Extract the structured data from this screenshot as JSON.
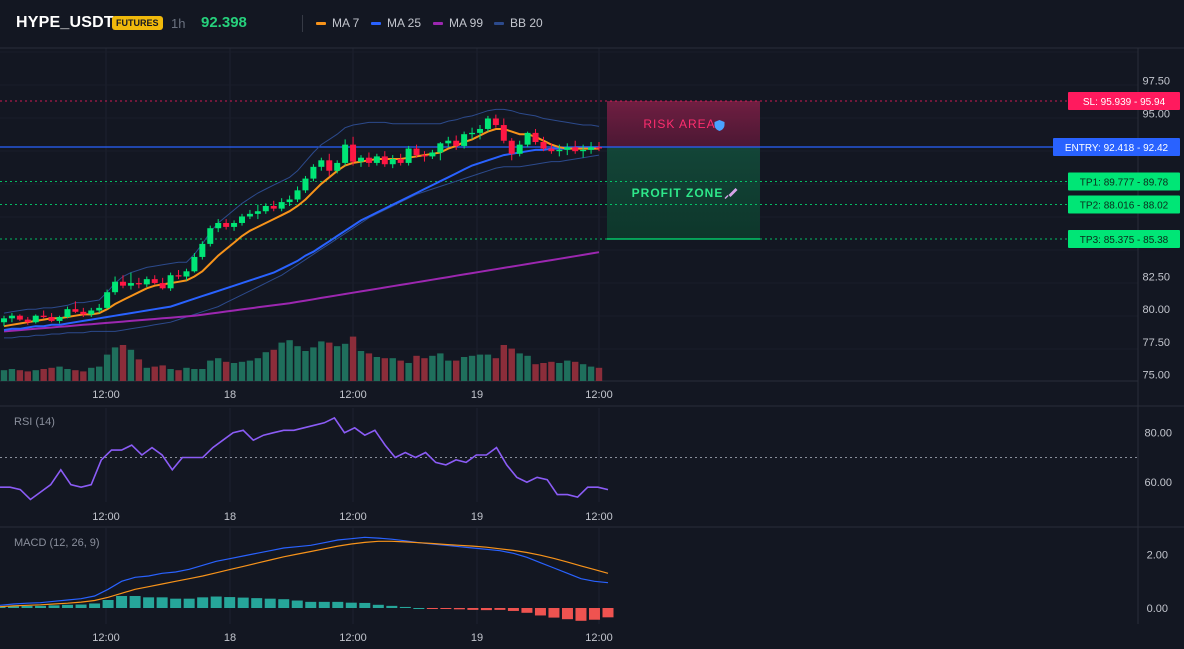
{
  "header": {
    "symbol": "HYPE_USDT",
    "badge": "FUTURES",
    "timeframe": "1h",
    "price": "92.398",
    "legend": [
      {
        "label": "MA 7",
        "color": "#f7931a"
      },
      {
        "label": "MA 25",
        "color": "#2962ff"
      },
      {
        "label": "MA 99",
        "color": "#9c27b0"
      },
      {
        "label": "BB 20",
        "color": "#2c4a8c"
      }
    ]
  },
  "colors": {
    "background": "#131722",
    "up": "#00e676",
    "down": "#ff1744",
    "vol_up": "#1f6f5c",
    "vol_down": "#8b2d3a",
    "sl": "#ff1a5e",
    "entry": "#2962ff",
    "tp": "#00e676",
    "rsi": "#8b5cf6",
    "macd": "#2962ff",
    "signal": "#f7931a",
    "hist_pos": "#26a69a",
    "hist_neg": "#ef5350"
  },
  "annotations": {
    "risk_label": "RISK AREA",
    "profit_label": "PROFIT ZONE",
    "risk_icon": "shield-icon",
    "profit_icon": "rocket-icon"
  },
  "chart_data": [
    {
      "type": "candlestick",
      "title": "",
      "ylim": [
        74.5,
        100
      ],
      "y_ticks": [
        "97.50",
        "95.00",
        "82.50",
        "80.00",
        "77.50",
        "75.00"
      ],
      "x_ticks": [
        "12:00",
        "18",
        "12:00",
        "19",
        "12:00"
      ],
      "candles": [
        {
          "o": 79.0,
          "h": 79.5,
          "l": 78.7,
          "c": 79.3
        },
        {
          "o": 79.3,
          "h": 79.7,
          "l": 79.0,
          "c": 79.5
        },
        {
          "o": 79.5,
          "h": 79.6,
          "l": 79.1,
          "c": 79.2
        },
        {
          "o": 79.2,
          "h": 79.4,
          "l": 78.8,
          "c": 79.0
        },
        {
          "o": 79.0,
          "h": 79.6,
          "l": 78.9,
          "c": 79.5
        },
        {
          "o": 79.5,
          "h": 79.9,
          "l": 79.3,
          "c": 79.4
        },
        {
          "o": 79.4,
          "h": 79.7,
          "l": 79.0,
          "c": 79.1
        },
        {
          "o": 79.1,
          "h": 79.5,
          "l": 78.9,
          "c": 79.4
        },
        {
          "o": 79.4,
          "h": 80.2,
          "l": 79.3,
          "c": 80.0
        },
        {
          "o": 80.0,
          "h": 80.6,
          "l": 79.7,
          "c": 79.8
        },
        {
          "o": 79.8,
          "h": 80.1,
          "l": 79.4,
          "c": 79.6
        },
        {
          "o": 79.6,
          "h": 80.1,
          "l": 79.4,
          "c": 79.9
        },
        {
          "o": 79.9,
          "h": 80.4,
          "l": 79.7,
          "c": 80.1
        },
        {
          "o": 80.1,
          "h": 81.5,
          "l": 80.0,
          "c": 81.3
        },
        {
          "o": 81.3,
          "h": 82.5,
          "l": 81.1,
          "c": 82.1
        },
        {
          "o": 82.1,
          "h": 82.6,
          "l": 81.6,
          "c": 81.8
        },
        {
          "o": 81.8,
          "h": 82.8,
          "l": 81.5,
          "c": 82.0
        },
        {
          "o": 82.0,
          "h": 82.4,
          "l": 81.6,
          "c": 81.9
        },
        {
          "o": 81.9,
          "h": 82.5,
          "l": 81.7,
          "c": 82.3
        },
        {
          "o": 82.3,
          "h": 82.6,
          "l": 81.9,
          "c": 82.0
        },
        {
          "o": 82.0,
          "h": 82.4,
          "l": 81.5,
          "c": 81.6
        },
        {
          "o": 81.6,
          "h": 82.8,
          "l": 81.4,
          "c": 82.6
        },
        {
          "o": 82.6,
          "h": 83.0,
          "l": 82.3,
          "c": 82.5
        },
        {
          "o": 82.5,
          "h": 83.1,
          "l": 82.2,
          "c": 82.9
        },
        {
          "o": 82.9,
          "h": 84.3,
          "l": 82.8,
          "c": 84.0
        },
        {
          "o": 84.0,
          "h": 85.2,
          "l": 83.8,
          "c": 85.0
        },
        {
          "o": 85.0,
          "h": 86.4,
          "l": 84.8,
          "c": 86.2
        },
        {
          "o": 86.2,
          "h": 86.9,
          "l": 85.9,
          "c": 86.6
        },
        {
          "o": 86.6,
          "h": 86.9,
          "l": 86.1,
          "c": 86.3
        },
        {
          "o": 86.3,
          "h": 86.8,
          "l": 86.0,
          "c": 86.6
        },
        {
          "o": 86.6,
          "h": 87.3,
          "l": 86.4,
          "c": 87.1
        },
        {
          "o": 87.1,
          "h": 87.6,
          "l": 86.9,
          "c": 87.3
        },
        {
          "o": 87.3,
          "h": 88.0,
          "l": 86.9,
          "c": 87.5
        },
        {
          "o": 87.5,
          "h": 88.1,
          "l": 87.3,
          "c": 87.9
        },
        {
          "o": 87.9,
          "h": 88.3,
          "l": 87.5,
          "c": 87.7
        },
        {
          "o": 87.7,
          "h": 88.5,
          "l": 87.5,
          "c": 88.2
        },
        {
          "o": 88.2,
          "h": 88.7,
          "l": 87.9,
          "c": 88.4
        },
        {
          "o": 88.4,
          "h": 89.4,
          "l": 88.2,
          "c": 89.1
        },
        {
          "o": 89.1,
          "h": 90.2,
          "l": 88.9,
          "c": 90.0
        },
        {
          "o": 90.0,
          "h": 91.1,
          "l": 89.8,
          "c": 90.9
        },
        {
          "o": 90.9,
          "h": 91.6,
          "l": 90.6,
          "c": 91.4
        },
        {
          "o": 91.4,
          "h": 91.9,
          "l": 90.2,
          "c": 90.6
        },
        {
          "o": 90.6,
          "h": 91.4,
          "l": 90.4,
          "c": 91.2
        },
        {
          "o": 91.2,
          "h": 93.0,
          "l": 91.0,
          "c": 92.6
        },
        {
          "o": 92.6,
          "h": 93.2,
          "l": 91.0,
          "c": 91.3
        },
        {
          "o": 91.3,
          "h": 91.8,
          "l": 90.9,
          "c": 91.6
        },
        {
          "o": 91.6,
          "h": 92.0,
          "l": 90.9,
          "c": 91.2
        },
        {
          "o": 91.2,
          "h": 91.9,
          "l": 91.0,
          "c": 91.7
        },
        {
          "o": 91.7,
          "h": 92.1,
          "l": 90.9,
          "c": 91.1
        },
        {
          "o": 91.1,
          "h": 91.8,
          "l": 90.8,
          "c": 91.5
        },
        {
          "o": 91.5,
          "h": 91.9,
          "l": 91.0,
          "c": 91.2
        },
        {
          "o": 91.2,
          "h": 92.5,
          "l": 91.0,
          "c": 92.3
        },
        {
          "o": 92.3,
          "h": 92.6,
          "l": 91.6,
          "c": 91.8
        },
        {
          "o": 91.8,
          "h": 92.1,
          "l": 91.3,
          "c": 91.7
        },
        {
          "o": 91.7,
          "h": 92.2,
          "l": 91.5,
          "c": 92.0
        },
        {
          "o": 92.0,
          "h": 92.8,
          "l": 91.4,
          "c": 92.7
        },
        {
          "o": 92.7,
          "h": 93.2,
          "l": 92.4,
          "c": 92.9
        },
        {
          "o": 92.9,
          "h": 93.3,
          "l": 92.2,
          "c": 92.5
        },
        {
          "o": 92.5,
          "h": 93.6,
          "l": 92.3,
          "c": 93.4
        },
        {
          "o": 93.4,
          "h": 93.9,
          "l": 93.0,
          "c": 93.5
        },
        {
          "o": 93.5,
          "h": 94.1,
          "l": 93.0,
          "c": 93.8
        },
        {
          "o": 93.8,
          "h": 94.8,
          "l": 93.6,
          "c": 94.6
        },
        {
          "o": 94.6,
          "h": 94.9,
          "l": 93.9,
          "c": 94.1
        },
        {
          "o": 94.1,
          "h": 94.6,
          "l": 92.7,
          "c": 92.9
        },
        {
          "o": 92.9,
          "h": 93.1,
          "l": 91.4,
          "c": 91.9
        },
        {
          "o": 91.9,
          "h": 92.9,
          "l": 91.7,
          "c": 92.6
        },
        {
          "o": 92.6,
          "h": 93.6,
          "l": 92.4,
          "c": 93.5
        },
        {
          "o": 93.5,
          "h": 93.8,
          "l": 92.6,
          "c": 92.8
        },
        {
          "o": 92.8,
          "h": 93.2,
          "l": 92.1,
          "c": 92.3
        },
        {
          "o": 92.3,
          "h": 92.7,
          "l": 91.9,
          "c": 92.1
        },
        {
          "o": 92.1,
          "h": 92.6,
          "l": 91.7,
          "c": 92.2
        },
        {
          "o": 92.2,
          "h": 92.7,
          "l": 91.8,
          "c": 92.4
        },
        {
          "o": 92.4,
          "h": 92.9,
          "l": 91.9,
          "c": 92.1
        },
        {
          "o": 92.1,
          "h": 92.6,
          "l": 91.6,
          "c": 92.2
        },
        {
          "o": 92.2,
          "h": 92.8,
          "l": 91.9,
          "c": 92.4
        },
        {
          "o": 92.4,
          "h": 92.8,
          "l": 92.1,
          "c": 92.398
        }
      ],
      "volume": [
        9,
        10,
        9,
        8,
        9,
        10,
        11,
        12,
        10,
        9,
        8,
        11,
        12,
        22,
        28,
        30,
        26,
        18,
        11,
        12,
        13,
        10,
        9,
        11,
        10,
        10,
        17,
        19,
        16,
        15,
        16,
        17,
        19,
        24,
        26,
        32,
        34,
        29,
        25,
        28,
        33,
        32,
        29,
        31,
        37,
        25,
        23,
        20,
        19,
        19,
        17,
        15,
        21,
        19,
        21,
        23,
        17,
        17,
        20,
        21,
        22,
        22,
        19,
        30,
        27,
        23,
        21,
        14,
        15,
        16,
        15,
        17,
        16,
        14,
        12,
        11
      ],
      "ma7": [
        78.7,
        78.8,
        78.9,
        79.0,
        79.1,
        79.2,
        79.3,
        79.3,
        79.4,
        79.5,
        79.6,
        79.6,
        79.7,
        80.0,
        80.4,
        80.7,
        81.0,
        81.3,
        81.6,
        81.8,
        81.9,
        82.0,
        82.1,
        82.2,
        82.5,
        82.9,
        83.5,
        84.1,
        84.6,
        85.1,
        85.6,
        86.0,
        86.3,
        86.6,
        86.9,
        87.2,
        87.5,
        87.9,
        88.4,
        89.0,
        89.6,
        90.1,
        90.6,
        91.0,
        91.2,
        91.3,
        91.4,
        91.5,
        91.5,
        91.5,
        91.5,
        91.6,
        91.7,
        91.8,
        91.9,
        92.0,
        92.3,
        92.5,
        92.8,
        93.0,
        93.3,
        93.6,
        93.8,
        93.8,
        93.6,
        93.4,
        93.4,
        93.2,
        92.9,
        92.6,
        92.4,
        92.3,
        92.3,
        92.3,
        92.3,
        92.3
      ],
      "ma25": [
        78.4,
        78.5,
        78.5,
        78.6,
        78.7,
        78.7,
        78.8,
        78.8,
        78.9,
        79.0,
        79.1,
        79.2,
        79.3,
        79.4,
        79.5,
        79.6,
        79.7,
        79.8,
        79.9,
        80.0,
        80.1,
        80.2,
        80.4,
        80.6,
        80.8,
        81.0,
        81.2,
        81.4,
        81.6,
        81.8,
        82.0,
        82.2,
        82.4,
        82.6,
        82.8,
        83.1,
        83.4,
        83.7,
        84.1,
        84.4,
        84.8,
        85.2,
        85.6,
        86.0,
        86.4,
        86.8,
        87.1,
        87.4,
        87.7,
        88.0,
        88.3,
        88.6,
        88.9,
        89.2,
        89.5,
        89.8,
        90.1,
        90.4,
        90.7,
        91.0,
        91.2,
        91.4,
        91.6,
        91.8,
        91.9,
        92.0,
        92.1,
        92.2,
        92.2,
        92.3,
        92.3,
        92.3,
        92.4,
        92.4,
        92.4,
        92.4
      ],
      "ma99": [
        78.3,
        78.35,
        78.4,
        78.45,
        78.5,
        78.55,
        78.6,
        78.65,
        78.7,
        78.75,
        78.8,
        78.85,
        78.9,
        78.95,
        79.0,
        79.05,
        79.1,
        79.15,
        79.2,
        79.25,
        79.3,
        79.35,
        79.4,
        79.45,
        79.5,
        79.58,
        79.66,
        79.74,
        79.82,
        79.9,
        79.98,
        80.06,
        80.14,
        80.22,
        80.3,
        80.38,
        80.46,
        80.56,
        80.66,
        80.76,
        80.86,
        80.96,
        81.06,
        81.16,
        81.26,
        81.36,
        81.46,
        81.56,
        81.66,
        81.76,
        81.86,
        81.96,
        82.06,
        82.16,
        82.26,
        82.36,
        82.46,
        82.56,
        82.66,
        82.76,
        82.86,
        82.96,
        83.06,
        83.16,
        83.26,
        83.36,
        83.46,
        83.56,
        83.66,
        83.76,
        83.86,
        83.96,
        84.06,
        84.16,
        84.26,
        84.36
      ],
      "bb_upper": [
        79.7,
        79.8,
        79.9,
        80.0,
        80.0,
        80.1,
        80.1,
        80.2,
        80.3,
        80.5,
        80.5,
        80.6,
        80.7,
        81.3,
        82.0,
        82.5,
        82.8,
        83.0,
        83.2,
        83.3,
        83.4,
        83.5,
        83.6,
        83.6,
        84.2,
        85.0,
        85.9,
        86.6,
        87.1,
        87.6,
        88.1,
        88.5,
        88.9,
        89.2,
        89.5,
        89.8,
        90.1,
        90.6,
        91.3,
        92.0,
        92.6,
        93.0,
        93.4,
        93.9,
        94.1,
        94.2,
        94.3,
        94.3,
        94.3,
        94.2,
        94.2,
        94.2,
        94.2,
        94.2,
        94.2,
        94.2,
        94.4,
        94.5,
        94.7,
        94.8,
        95.0,
        95.2,
        95.3,
        95.3,
        95.2,
        95.0,
        94.9,
        94.8,
        94.6,
        94.5,
        94.4,
        94.3,
        94.2,
        94.1,
        94.1,
        94.0
      ],
      "bb_lower": [
        77.8,
        77.8,
        77.9,
        77.9,
        78.0,
        78.0,
        78.1,
        78.1,
        78.2,
        78.2,
        78.2,
        78.3,
        78.3,
        78.3,
        78.3,
        78.4,
        78.5,
        78.6,
        78.7,
        78.8,
        78.9,
        79.0,
        79.2,
        79.4,
        79.6,
        79.8,
        80.0,
        80.2,
        80.5,
        80.8,
        81.1,
        81.4,
        81.7,
        82.0,
        82.3,
        82.6,
        83.0,
        83.4,
        83.8,
        84.2,
        84.6,
        85.0,
        85.4,
        85.8,
        86.2,
        86.6,
        87.0,
        87.3,
        87.6,
        87.9,
        88.2,
        88.5,
        88.8,
        89.0,
        89.2,
        89.4,
        89.6,
        89.8,
        90.0,
        90.2,
        90.4,
        90.6,
        90.8,
        90.9,
        90.9,
        90.9,
        91.0,
        91.1,
        91.2,
        91.3,
        91.3,
        91.4,
        91.5,
        91.6,
        91.7,
        91.8
      ],
      "levels": [
        {
          "name": "SL",
          "value": 95.939,
          "label": "SL: 95.939",
          "short": "95.94"
        },
        {
          "name": "ENTRY",
          "value": 92.418,
          "label": "ENTRY: 92.418",
          "short": "92.42"
        },
        {
          "name": "TP1",
          "value": 89.777,
          "label": "TP1: 89.777",
          "short": "89.78"
        },
        {
          "name": "TP2",
          "value": 88.016,
          "label": "TP2: 88.016",
          "short": "88.02"
        },
        {
          "name": "TP3",
          "value": 85.375,
          "label": "TP3: 85.375",
          "short": "85.38"
        }
      ]
    },
    {
      "type": "line",
      "title": "RSI (14)",
      "ylim": [
        52,
        90
      ],
      "y_ticks": [
        "80.00",
        "60.00"
      ],
      "x_ticks": [
        "12:00",
        "18",
        "12:00",
        "19",
        "12:00"
      ],
      "reference_line": 70,
      "values": [
        58,
        58,
        57,
        53,
        56,
        59,
        65,
        59,
        58,
        59,
        69,
        73,
        73,
        75,
        71,
        74,
        71,
        65,
        70,
        70,
        70,
        74,
        77,
        80,
        81,
        77,
        79,
        80,
        81,
        81,
        82,
        83,
        84,
        86,
        80,
        82,
        79,
        81,
        75,
        70,
        72,
        70,
        72,
        68,
        67,
        69,
        68,
        71,
        71,
        74,
        67,
        62,
        60,
        62,
        61,
        55,
        55,
        54,
        58,
        58,
        57
      ],
      "x_ticks_x_note": ""
    },
    {
      "type": "line",
      "title": "MACD (12, 26, 9)",
      "ylim": [
        -0.6,
        3.0
      ],
      "y_ticks": [
        "2.00",
        "0.00"
      ],
      "x_ticks": [
        "12:00",
        "18",
        "12:00",
        "19",
        "12:00"
      ],
      "macd": [
        0.1,
        0.15,
        0.18,
        0.2,
        0.25,
        0.3,
        0.35,
        0.45,
        0.7,
        1.0,
        1.15,
        1.2,
        1.3,
        1.35,
        1.45,
        1.6,
        1.75,
        1.85,
        1.95,
        2.05,
        2.15,
        2.25,
        2.3,
        2.35,
        2.45,
        2.55,
        2.6,
        2.65,
        2.62,
        2.58,
        2.52,
        2.45,
        2.4,
        2.35,
        2.3,
        2.25,
        2.2,
        2.15,
        2.05,
        1.9,
        1.7,
        1.5,
        1.3,
        1.1,
        1.0,
        0.95
      ],
      "signal": [
        0.05,
        0.08,
        0.1,
        0.12,
        0.15,
        0.18,
        0.22,
        0.28,
        0.4,
        0.55,
        0.7,
        0.8,
        0.9,
        1.0,
        1.1,
        1.2,
        1.32,
        1.44,
        1.56,
        1.68,
        1.8,
        1.92,
        2.02,
        2.12,
        2.22,
        2.32,
        2.4,
        2.46,
        2.5,
        2.5,
        2.48,
        2.45,
        2.42,
        2.38,
        2.35,
        2.32,
        2.28,
        2.22,
        2.16,
        2.08,
        1.98,
        1.86,
        1.72,
        1.58,
        1.44,
        1.3
      ],
      "histogram": [
        0.05,
        0.07,
        0.08,
        0.08,
        0.1,
        0.12,
        0.13,
        0.17,
        0.3,
        0.45,
        0.45,
        0.4,
        0.4,
        0.35,
        0.35,
        0.4,
        0.43,
        0.41,
        0.39,
        0.37,
        0.35,
        0.33,
        0.28,
        0.23,
        0.23,
        0.23,
        0.2,
        0.19,
        0.12,
        0.08,
        0.04,
        0.0,
        -0.02,
        -0.03,
        -0.05,
        -0.07,
        -0.08,
        -0.07,
        -0.11,
        -0.18,
        -0.28,
        -0.36,
        -0.42,
        -0.48,
        -0.44,
        -0.35
      ]
    }
  ]
}
